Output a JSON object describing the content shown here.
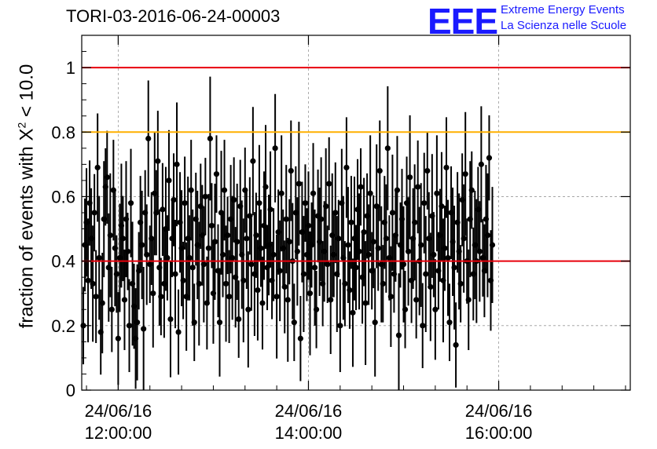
{
  "header": {
    "title": "TORI-03-2016-06-24-00003",
    "logo_text": "EEE",
    "logo_line1": "Extreme Energy Events",
    "logo_line2": "La Scienza nelle Scuole"
  },
  "colors": {
    "line_red": "#e8000b",
    "line_orange": "#ffb000",
    "logo_blue": "#1a1aff",
    "points": "#000000",
    "grid": "#999999"
  },
  "chart_data": {
    "type": "scatter",
    "title": "TORI-03-2016-06-24-00003",
    "ylabel_prefix": "fraction of events with X",
    "ylabel_sup": "2",
    "ylabel_suffix": " < 10.0",
    "xlabel": "",
    "xlim": [
      "2016-06-24 11:37",
      "2016-06-24 17:23"
    ],
    "ylim": [
      0,
      1.1
    ],
    "grid": true,
    "y_ticks": [
      "0",
      "0.2",
      "0.4",
      "0.6",
      "0.8",
      "1"
    ],
    "x_ticks": [
      {
        "date": "24/06/16",
        "time": "12:00:00"
      },
      {
        "date": "24/06/16",
        "time": "14:00:00"
      },
      {
        "date": "24/06/16",
        "time": "16:00:00"
      }
    ],
    "reference_lines": [
      {
        "y": 1.0,
        "color": "red"
      },
      {
        "y": 0.8,
        "color": "orange"
      },
      {
        "y": 0.4,
        "color": "red"
      }
    ],
    "series": [
      {
        "x_start": "2016-06-24 11:38",
        "x_step_minutes": 1,
        "values": [
          0.2,
          0.45,
          0.52,
          0.34,
          0.58,
          0.47,
          0.33,
          0.55,
          0.29,
          0.69,
          0.41,
          0.18,
          0.27,
          0.53,
          0.63,
          0.66,
          0.38,
          0.48,
          0.25,
          0.62,
          0.44,
          0.36,
          0.16,
          0.41,
          0.51,
          0.47,
          0.28,
          0.53,
          0.43,
          0.2,
          0.58,
          0.33,
          0.26,
          0.16,
          0.21,
          0.37,
          0.52,
          0.45,
          0.19,
          0.55,
          0.42,
          0.78,
          0.39,
          0.47,
          0.3,
          0.61,
          0.55,
          0.71,
          0.38,
          0.29,
          0.56,
          0.33,
          0.5,
          0.41,
          0.65,
          0.22,
          0.47,
          0.59,
          0.36,
          0.7,
          0.18,
          0.52,
          0.44,
          0.34,
          0.58,
          0.29,
          0.47,
          0.41,
          0.62,
          0.38,
          0.21,
          0.53,
          0.45,
          0.33,
          0.57,
          0.48,
          0.39,
          0.6,
          0.27,
          0.44,
          0.78,
          0.51,
          0.3,
          0.46,
          0.67,
          0.37,
          0.21,
          0.55,
          0.42,
          0.62,
          0.33,
          0.48,
          0.29,
          0.53,
          0.41,
          0.59,
          0.35,
          0.46,
          0.22,
          0.57,
          0.42,
          0.34,
          0.62,
          0.47,
          0.25,
          0.54,
          0.39,
          0.71,
          0.36,
          0.48,
          0.31,
          0.58,
          0.44,
          0.27,
          0.51,
          0.63,
          0.38,
          0.45,
          0.56,
          0.34,
          0.42,
          0.75,
          0.29,
          0.49,
          0.37,
          0.61,
          0.44,
          0.32,
          0.53,
          0.28,
          0.46,
          0.68,
          0.4,
          0.21,
          0.55,
          0.43,
          0.64,
          0.16,
          0.49,
          0.36,
          0.58,
          0.42,
          0.51,
          0.3,
          0.45,
          0.61,
          0.38,
          0.25,
          0.54,
          0.46,
          0.53,
          0.33,
          0.43,
          0.57,
          0.39,
          0.64,
          0.28,
          0.48,
          0.42,
          0.55,
          0.36,
          0.47,
          0.2,
          0.58,
          0.41,
          0.33,
          0.69,
          0.45,
          0.31,
          0.52,
          0.24,
          0.47,
          0.38,
          0.56,
          0.43,
          0.63,
          0.35,
          0.49,
          0.27,
          0.54,
          0.42,
          0.61,
          0.37,
          0.46,
          0.21,
          0.57,
          0.44,
          0.68,
          0.39,
          0.33,
          0.52,
          0.47,
          0.75,
          0.41,
          0.29,
          0.55,
          0.36,
          0.48,
          0.62,
          0.17,
          0.45,
          0.53,
          0.39,
          0.25,
          0.58,
          0.43,
          0.66,
          0.34,
          0.47,
          0.52,
          0.28,
          0.63,
          0.4,
          0.45,
          0.2,
          0.58,
          0.36,
          0.68,
          0.47,
          0.32,
          0.54,
          0.42,
          0.25,
          0.61,
          0.37,
          0.48,
          0.57,
          0.34,
          0.44,
          0.69,
          0.41,
          0.21,
          0.55,
          0.46,
          0.38,
          0.14,
          0.52,
          0.43,
          0.33,
          0.59,
          0.47,
          0.67,
          0.4,
          0.28,
          0.53,
          0.62,
          0.36,
          0.45,
          0.4,
          0.56,
          0.43,
          0.7,
          0.41,
          0.37,
          0.53,
          0.48,
          0.72,
          0.34,
          0.45
        ]
      }
    ]
  }
}
